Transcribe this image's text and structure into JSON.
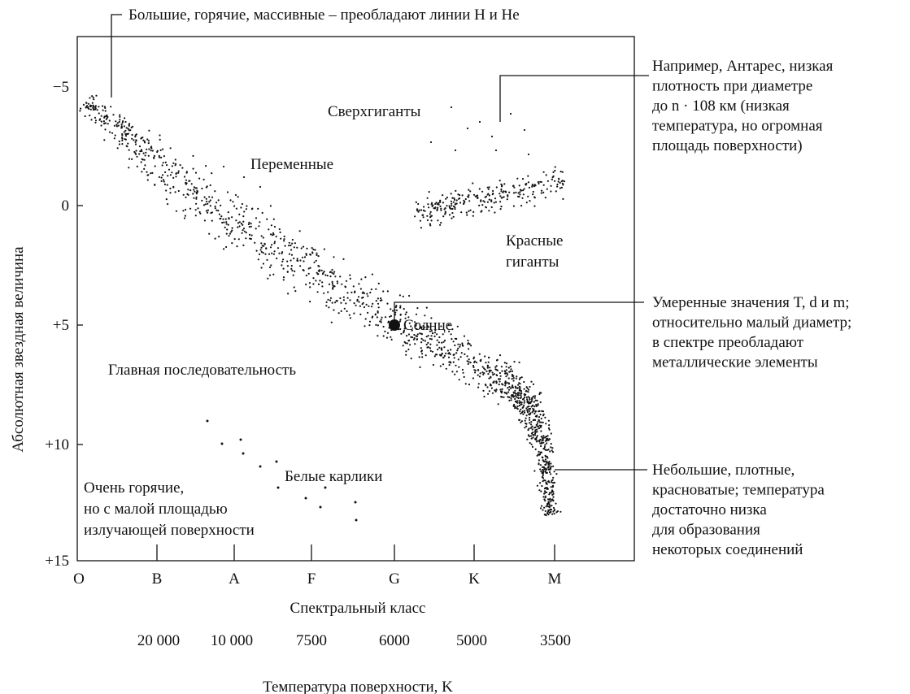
{
  "top_annotation": "Большие, горячие, массивные – преобладают линии H и He",
  "y_axis": {
    "label": "Абсолютная звездная величина",
    "ticks": [
      "−5",
      "0",
      "+5",
      "+10",
      "+15"
    ]
  },
  "x_axis": {
    "label": "Спектральный класс",
    "classes": [
      "O",
      "B",
      "A",
      "F",
      "G",
      "K",
      "M"
    ]
  },
  "temperature_axis": {
    "label": "Температура поверхности, K",
    "ticks": [
      "20 000",
      "10 000",
      "7500",
      "6000",
      "5000",
      "3500"
    ]
  },
  "regions": {
    "supergiants": "Сверхгиганты",
    "variables": "Переменные",
    "red_giants": [
      "Красные",
      "гиганты"
    ],
    "main_sequence": "Главная последовательность",
    "white_dwarfs": "Белые карлики",
    "very_hot": [
      "Очень горячие,",
      "но с малой площадью",
      "излучающей поверхности"
    ],
    "sun": "Солнце"
  },
  "annotations": {
    "antares": [
      "Например, Антарес, низкая",
      "плотность при диаметре",
      "до n · 108 км (низкая",
      "температура, но огромная",
      "площадь поверхности)"
    ],
    "sun": [
      "Умеренные значения T, d и m;",
      "относительно малый диаметр;",
      "в спектре преобладают",
      "металлические элементы"
    ],
    "red_dwarfs": [
      "Небольшие, плотные,",
      "красноватые; температура",
      "достаточно низка",
      "для образования",
      "некоторых соединений"
    ]
  }
}
